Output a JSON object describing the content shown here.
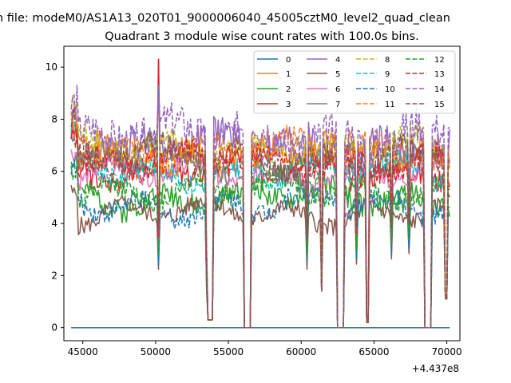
{
  "suptitle": "n file: modeM0/AS1A13_020T01_9000006040_45005cztM0_level2_quad_clean",
  "chart_data": {
    "type": "line",
    "title": "Quadrant 3 module wise count rates with 100.0s bins.",
    "xlabel": "",
    "ylabel": "",
    "x_offset_label": "+4.437e8",
    "xlim": [
      43700,
      70900
    ],
    "ylim": [
      -0.5,
      10.8
    ],
    "xticks": [
      45000,
      50000,
      55000,
      60000,
      65000,
      70000
    ],
    "xtick_labels": [
      "45000",
      "50000",
      "55000",
      "60000",
      "65000",
      "70000"
    ],
    "yticks": [
      0,
      2,
      4,
      6,
      8,
      10
    ],
    "ytick_labels": [
      "0",
      "2",
      "4",
      "6",
      "8",
      "10"
    ],
    "grid": false,
    "legend_placement": "top-right",
    "legend_columns": 4,
    "gaps": [
      [
        53600,
        53900,
        0.3
      ],
      [
        56100,
        56550,
        0.0
      ],
      [
        61350,
        61450,
        1.4
      ],
      [
        62450,
        62950,
        0.0
      ],
      [
        64450,
        64600,
        0.2
      ],
      [
        68450,
        68900,
        0.0
      ],
      [
        69850,
        70000,
        1.1
      ]
    ],
    "dips": [
      [
        50200,
        2.6
      ],
      [
        53500,
        1.8
      ],
      [
        60400,
        2.6
      ],
      [
        63800,
        2.8
      ],
      [
        66200,
        3.0
      ],
      [
        67400,
        3.2
      ]
    ],
    "series": [
      {
        "name": "0",
        "color": "#1f77b4",
        "dash": "solid",
        "flat": true,
        "level": 0.0
      },
      {
        "name": "1",
        "color": "#ff7f0e",
        "dash": "solid",
        "level": 6.7,
        "amp": 0.55,
        "seed": 1
      },
      {
        "name": "2",
        "color": "#2ca02c",
        "dash": "solid",
        "level": 5.0,
        "amp": 0.45,
        "seed": 2
      },
      {
        "name": "3",
        "color": "#d62728",
        "dash": "solid",
        "level": 6.1,
        "amp": 0.45,
        "seed": 3
      },
      {
        "name": "4",
        "color": "#9467bd",
        "dash": "solid",
        "level": 7.0,
        "amp": 0.65,
        "seed": 4
      },
      {
        "name": "5",
        "color": "#8c564b",
        "dash": "solid",
        "level": 4.4,
        "amp": 0.35,
        "seed": 5
      },
      {
        "name": "6",
        "color": "#e377c2",
        "dash": "solid",
        "level": 5.9,
        "amp": 0.35,
        "seed": 6
      },
      {
        "name": "7",
        "color": "#7f7f7f",
        "dash": "solid",
        "level": 6.3,
        "amp": 0.4,
        "seed": 7
      },
      {
        "name": "8",
        "color": "#bcbd22",
        "dash": "dashed",
        "level": 6.9,
        "amp": 0.5,
        "seed": 8
      },
      {
        "name": "9",
        "color": "#17becf",
        "dash": "dashed",
        "level": 6.0,
        "amp": 0.4,
        "seed": 9
      },
      {
        "name": "10",
        "color": "#1f77b4",
        "dash": "dashed",
        "level": 4.7,
        "amp": 0.4,
        "seed": 10
      },
      {
        "name": "11",
        "color": "#ff7f0e",
        "dash": "dashed",
        "level": 6.8,
        "amp": 0.55,
        "seed": 11
      },
      {
        "name": "12",
        "color": "#2ca02c",
        "dash": "dashed",
        "level": 5.3,
        "amp": 0.4,
        "seed": 12
      },
      {
        "name": "13",
        "color": "#d62728",
        "dash": "dashed",
        "level": 6.4,
        "amp": 0.45,
        "seed": 13
      },
      {
        "name": "14",
        "color": "#9467bd",
        "dash": "dashed",
        "level": 7.4,
        "amp": 0.7,
        "seed": 14
      },
      {
        "name": "15",
        "color": "#8c564b",
        "dash": "dashed",
        "level": 6.5,
        "amp": 0.5,
        "seed": 15
      }
    ]
  }
}
